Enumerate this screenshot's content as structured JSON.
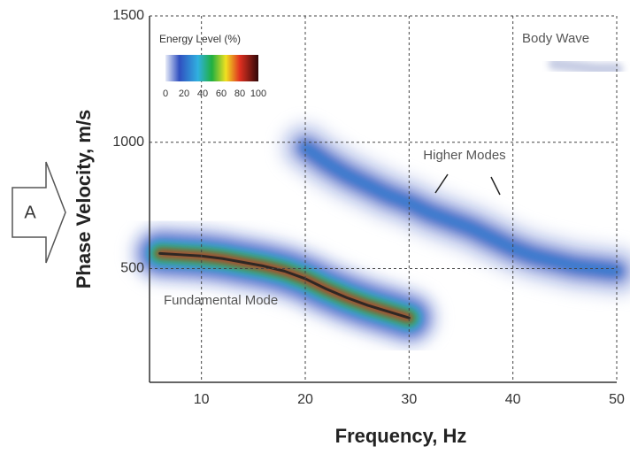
{
  "chart_data": {
    "type": "dispersion",
    "xlabel": "Frequency, Hz",
    "ylabel": "Phase Velocity, m/s",
    "xlim": [
      5,
      50
    ],
    "xticks": [
      10,
      20,
      30,
      40,
      50
    ],
    "ylim": [
      50,
      1500
    ],
    "yticks": [
      500,
      1000,
      1500
    ],
    "grid": true,
    "colorbar_title": "Energy Level (%)",
    "clim": [
      0,
      100
    ],
    "colorbar_ticks": [
      0,
      20,
      40,
      60,
      80,
      100
    ],
    "series": [
      {
        "name": "Fundamental Mode",
        "color": "#d03020",
        "x": [
          6,
          8,
          10,
          12,
          14,
          16,
          18,
          20,
          22,
          24,
          26,
          28,
          30
        ],
        "values": [
          560,
          555,
          550,
          540,
          525,
          510,
          490,
          460,
          420,
          385,
          355,
          330,
          305
        ]
      },
      {
        "name": "Higher Modes",
        "color": "#2a7fd0",
        "x": [
          20,
          22,
          24,
          26,
          28,
          30,
          32,
          34,
          36,
          38,
          40,
          42,
          44,
          46,
          48,
          50
        ],
        "values": [
          980,
          920,
          870,
          830,
          790,
          760,
          720,
          690,
          660,
          620,
          580,
          550,
          530,
          510,
          500,
          490
        ]
      },
      {
        "name": "Body Wave",
        "color": "#b8c0dd",
        "x": [
          44,
          46,
          48,
          50
        ],
        "values": [
          1310,
          1300,
          1290,
          1290
        ]
      }
    ],
    "box_label": "A"
  }
}
